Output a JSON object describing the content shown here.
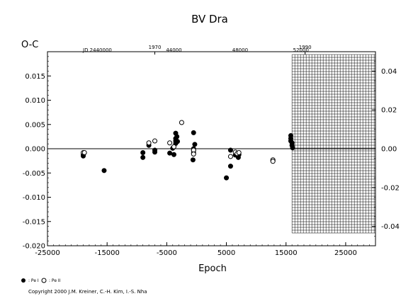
{
  "chart_data": {
    "type": "scatter",
    "title": "BV Dra",
    "ylabel": "O-C",
    "xlabel": "Epoch",
    "xlim": [
      -25000,
      30000
    ],
    "ylim": [
      -0.02,
      0.02
    ],
    "x_ticks": [
      -25000,
      -15000,
      -5000,
      5000,
      15000,
      25000
    ],
    "x_tick_labels": [
      "-25000",
      "-15000",
      "-5000",
      "5000",
      "15000",
      "25000"
    ],
    "y_ticks": [
      -0.02,
      -0.015,
      -0.01,
      -0.005,
      0.0,
      0.005,
      0.01,
      0.015
    ],
    "y_tick_labels": [
      "-0.020",
      "-0.015",
      "-0.010",
      "-0.005",
      "0.000",
      "0.005",
      "0.010",
      "0.015"
    ],
    "right_axis": {
      "ticks": [
        -0.04,
        -0.02,
        0.0,
        0.02,
        0.04
      ],
      "tick_labels": [
        "-0.04",
        "-0.02",
        "0.00",
        "0.02",
        "0.04"
      ],
      "range": [
        -0.05,
        0.05
      ]
    },
    "top_axis_years": {
      "ticks": [
        -7000,
        18200
      ],
      "tick_labels": [
        "1970",
        "1990"
      ]
    },
    "top_axis_jd": {
      "prefix": "JD 2440000",
      "ticks": [
        5500,
        30000,
        44000
      ],
      "tick_labels": [
        "44000",
        "48000",
        "52000"
      ]
    },
    "grid_region": {
      "x_from": 16000,
      "x_to": 30000,
      "fill": "grid"
    },
    "series": [
      {
        "name": ": Pe I",
        "marker": "filled-circle",
        "points": [
          [
            -19000,
            -0.0012
          ],
          [
            -19000,
            -0.0015
          ],
          [
            -15500,
            -0.0045
          ],
          [
            -9000,
            -0.0008
          ],
          [
            -9000,
            -0.0018
          ],
          [
            -8000,
            0.0007
          ],
          [
            -7000,
            -0.0003
          ],
          [
            -7000,
            -0.0007
          ],
          [
            -4500,
            -0.0009
          ],
          [
            -4000,
            0.0001
          ],
          [
            -3800,
            -0.0012
          ],
          [
            -3500,
            0.0032
          ],
          [
            -3500,
            0.0021
          ],
          [
            -3500,
            0.0016
          ],
          [
            -3500,
            0.0011
          ],
          [
            -3300,
            0.0025
          ],
          [
            -3200,
            0.0015
          ],
          [
            -500,
            0.0033
          ],
          [
            -300,
            0.0009
          ],
          [
            -500,
            0.0
          ],
          [
            -500,
            -0.0004
          ],
          [
            -500,
            -0.0009
          ],
          [
            -600,
            -0.0023
          ],
          [
            5000,
            -0.006
          ],
          [
            5700,
            -0.0036
          ],
          [
            5700,
            -0.0003
          ],
          [
            6500,
            -0.0013
          ],
          [
            7000,
            -0.0018
          ],
          [
            7100,
            -0.0012
          ],
          [
            12800,
            -0.0025
          ],
          [
            15800,
            0.0027
          ],
          [
            15800,
            0.0021
          ],
          [
            15800,
            0.0016
          ],
          [
            16000,
            0.0012
          ],
          [
            16000,
            0.0007
          ],
          [
            16100,
            0.0002
          ]
        ]
      },
      {
        "name": ": Pe II",
        "marker": "open-circle",
        "points": [
          [
            -19000,
            -0.0008
          ],
          [
            -18800,
            -0.0008
          ],
          [
            -8000,
            0.0012
          ],
          [
            -7000,
            0.0016
          ],
          [
            -4500,
            0.0012
          ],
          [
            -2500,
            0.0054
          ],
          [
            -500,
            -0.0003
          ],
          [
            -500,
            -0.0011
          ],
          [
            5700,
            -0.0016
          ],
          [
            6500,
            -0.0007
          ],
          [
            6800,
            -0.001
          ],
          [
            7100,
            -0.0008
          ],
          [
            12800,
            -0.0023
          ],
          [
            12800,
            -0.0026
          ],
          [
            -3800,
            0.0004
          ]
        ]
      }
    ]
  },
  "copyright": "Copyright 2000 J.M. Kreiner, C.-H. Kim, I.-S. Nha"
}
